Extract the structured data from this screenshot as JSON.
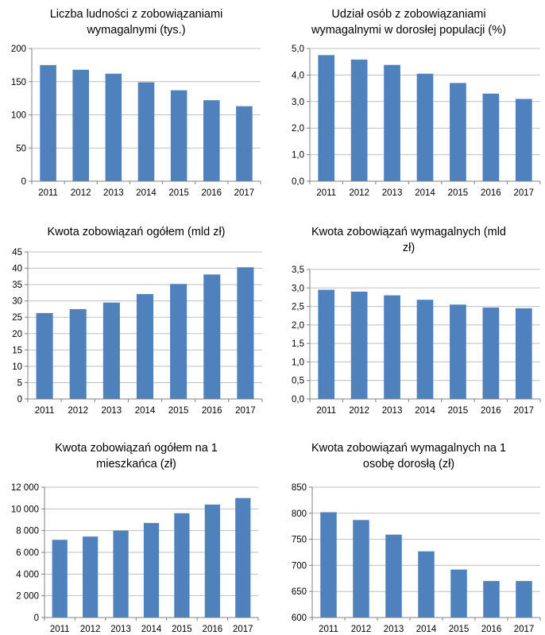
{
  "chart_data": [
    {
      "type": "bar",
      "title": "Liczba ludności z zobowiązaniami\nwymagalnymi (tys.)",
      "categories": [
        "2011",
        "2012",
        "2013",
        "2014",
        "2015",
        "2016",
        "2017"
      ],
      "values": [
        175,
        168,
        162,
        149,
        137,
        122,
        113
      ],
      "ylim": [
        0,
        200
      ],
      "yticks": [
        0,
        50,
        100,
        150,
        200
      ],
      "ytick_labels": [
        "0",
        "50",
        "100",
        "150",
        "200"
      ],
      "grid": true,
      "color": "#4F81BD"
    },
    {
      "type": "bar",
      "title": "Udział osób z zobowiązaniami\nwymagalnymi w dorosłej populacji (%)",
      "categories": [
        "2011",
        "2012",
        "2013",
        "2014",
        "2015",
        "2016",
        "2017"
      ],
      "values": [
        4.75,
        4.58,
        4.38,
        4.05,
        3.7,
        3.3,
        3.1
      ],
      "ylim": [
        0,
        5
      ],
      "yticks": [
        0,
        1,
        2,
        3,
        4,
        5
      ],
      "ytick_labels": [
        "0,0",
        "1,0",
        "2,0",
        "3,0",
        "4,0",
        "5,0"
      ],
      "grid": true,
      "color": "#4F81BD"
    },
    {
      "type": "bar",
      "title": "Kwota zobowiązań ogółem (mld zł)",
      "categories": [
        "2011",
        "2012",
        "2013",
        "2014",
        "2015",
        "2016",
        "2017"
      ],
      "values": [
        26.3,
        27.5,
        29.5,
        32.1,
        35.2,
        38.1,
        40.3
      ],
      "ylim": [
        0,
        45
      ],
      "yticks": [
        0,
        5,
        10,
        15,
        20,
        25,
        30,
        35,
        40,
        45
      ],
      "ytick_labels": [
        "0",
        "5",
        "10",
        "15",
        "20",
        "25",
        "30",
        "35",
        "40",
        "45"
      ],
      "grid": true,
      "color": "#4F81BD"
    },
    {
      "type": "bar",
      "title": "Kwota zobowiązań wymagalnych (mld\nzł)",
      "categories": [
        "2011",
        "2012",
        "2013",
        "2014",
        "2015",
        "2016",
        "2017"
      ],
      "values": [
        2.95,
        2.9,
        2.8,
        2.68,
        2.55,
        2.47,
        2.45
      ],
      "ylim": [
        0,
        3.5
      ],
      "yticks": [
        0,
        0.5,
        1,
        1.5,
        2,
        2.5,
        3,
        3.5
      ],
      "ytick_labels": [
        "0,0",
        "0,5",
        "1,0",
        "1,5",
        "2,0",
        "2,5",
        "3,0",
        "3,5"
      ],
      "grid": true,
      "color": "#4F81BD"
    },
    {
      "type": "bar",
      "title": "Kwota zobowiązań ogółem na 1\nmieszkańca (zł)",
      "categories": [
        "2011",
        "2012",
        "2013",
        "2014",
        "2015",
        "2016",
        "2017"
      ],
      "values": [
        7150,
        7450,
        8000,
        8700,
        9600,
        10400,
        11000
      ],
      "ylim": [
        0,
        12000
      ],
      "yticks": [
        0,
        2000,
        4000,
        6000,
        8000,
        10000,
        12000
      ],
      "ytick_labels": [
        "0",
        "2 000",
        "4 000",
        "6 000",
        "8 000",
        "10 000",
        "12 000"
      ],
      "grid": true,
      "color": "#4F81BD"
    },
    {
      "type": "bar",
      "title": "Kwota zobowiązań wymagalnych na 1\nosobę dorosłą (zł)",
      "categories": [
        "2011",
        "2012",
        "2013",
        "2014",
        "2015",
        "2016",
        "2017"
      ],
      "values": [
        802,
        787,
        759,
        727,
        692,
        670,
        670
      ],
      "ylim": [
        600,
        850
      ],
      "yticks": [
        600,
        650,
        700,
        750,
        800,
        850
      ],
      "ytick_labels": [
        "600",
        "650",
        "700",
        "750",
        "800",
        "850"
      ],
      "grid": true,
      "color": "#4F81BD"
    }
  ]
}
